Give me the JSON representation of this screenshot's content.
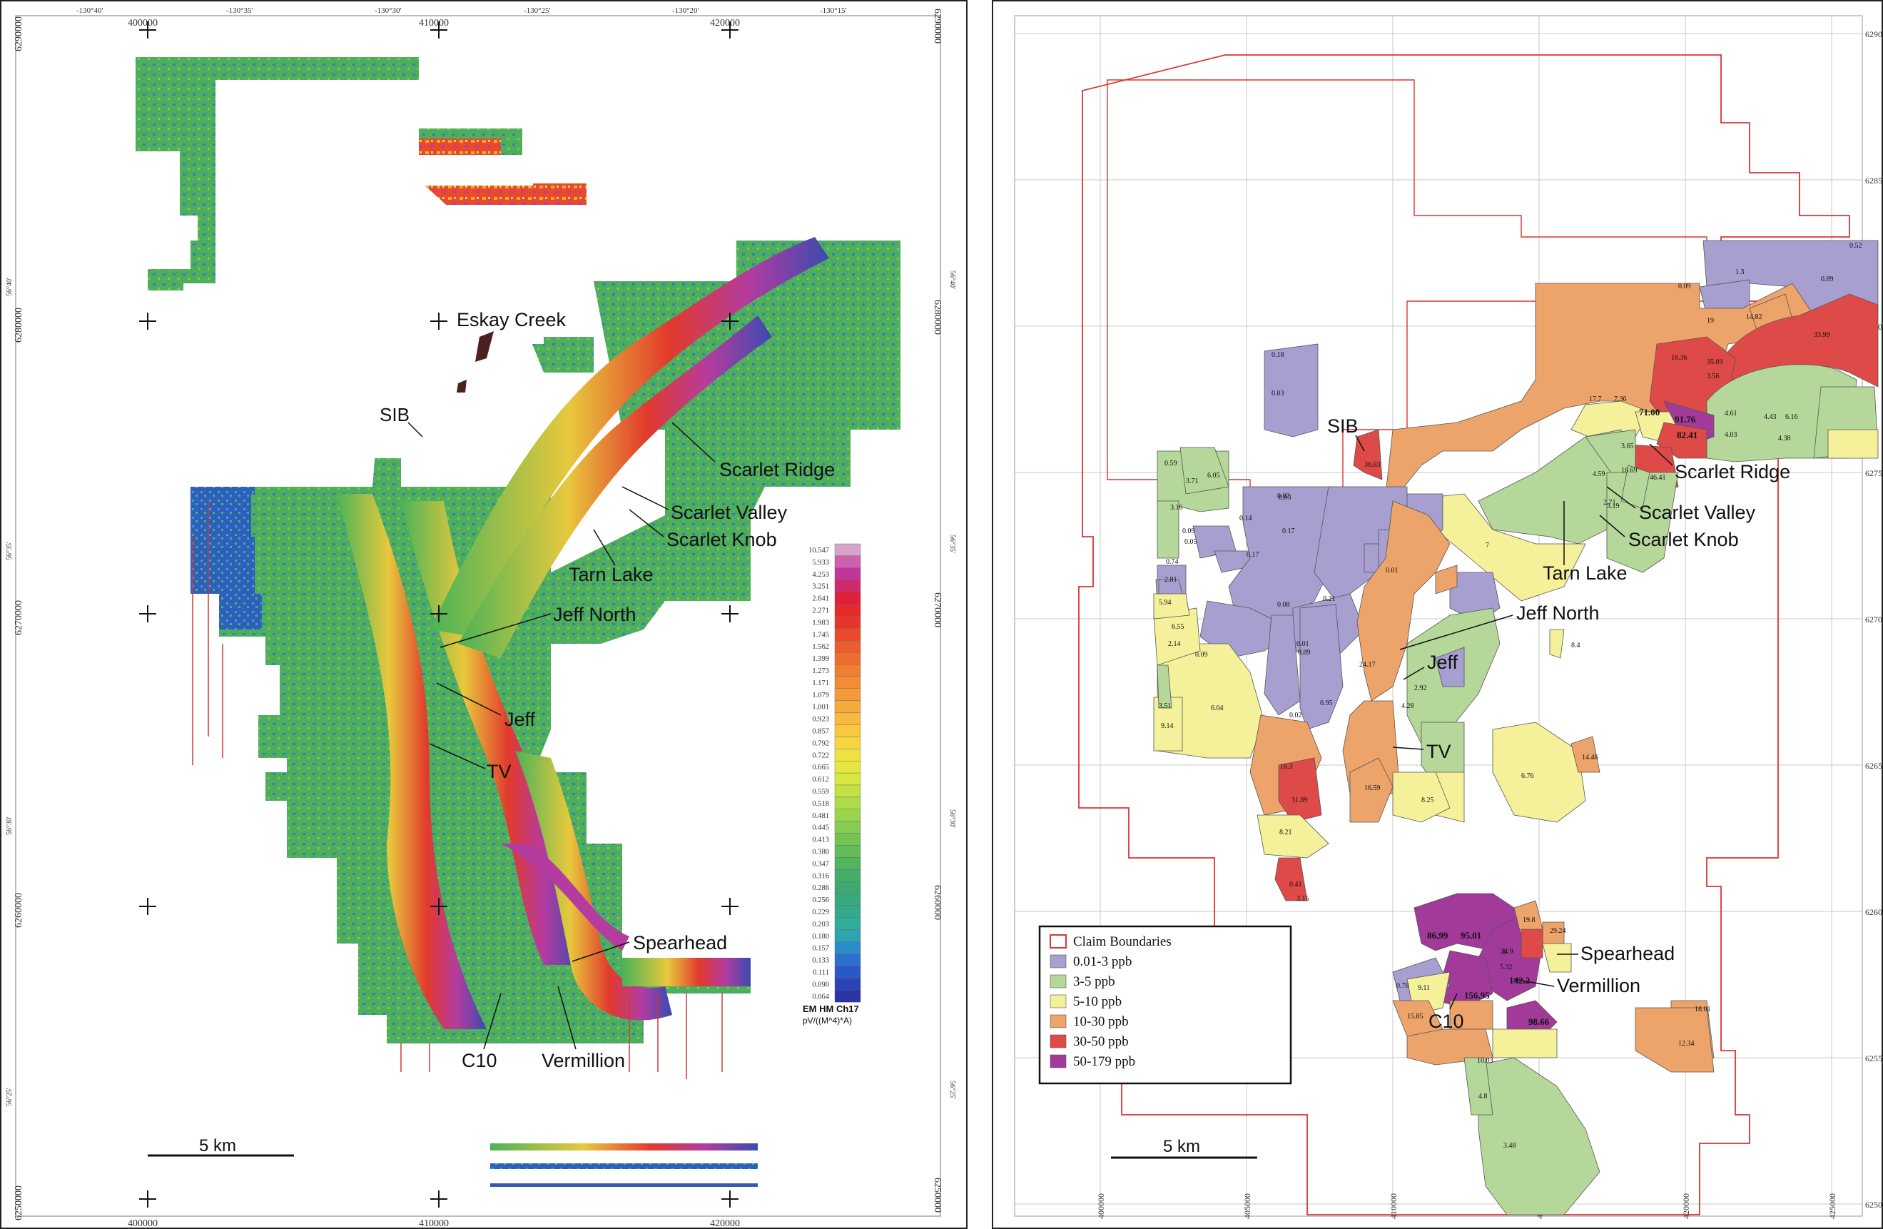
{
  "left_map": {
    "lon_ticks": [
      "-130°40'",
      "-130°35'",
      "-130°30'",
      "-130°25'",
      "-130°20'",
      "-130°15'"
    ],
    "easting_ticks": [
      "400000",
      "410000",
      "420000"
    ],
    "northing_ticks_left": [
      "6290000",
      "6280000",
      "6270000",
      "6260000",
      "6250000"
    ],
    "northing_ticks_right": [
      "6290000",
      "6280000",
      "6270000",
      "6260000",
      "6250000"
    ],
    "lat_ticks": [
      "56°40'",
      "56°35'",
      "56°30'",
      "56°25'"
    ],
    "places": {
      "eskay": "Eskay Creek",
      "sib": "SIB",
      "scarlet_ridge": "Scarlet Ridge",
      "scarlet_valley": "Scarlet Valley",
      "scarlet_knob": "Scarlet Knob",
      "tarn_lake": "Tarn Lake",
      "jeff_north": "Jeff North",
      "jeff": "Jeff",
      "tv": "TV",
      "spearhead": "Spearhead",
      "c10": "C10",
      "vermillion": "Vermillion"
    },
    "scale_label": "5 km",
    "legend": {
      "title": "EM HM Ch17",
      "units": "pV/((M^4)*A)",
      "values": [
        "10.547",
        "5.933",
        "4.253",
        "3.251",
        "2.641",
        "2.271",
        "1.983",
        "1.745",
        "1.562",
        "1.399",
        "1.273",
        "1.171",
        "1.079",
        "1.001",
        "0.923",
        "0.857",
        "0.792",
        "0.722",
        "0.665",
        "0.612",
        "0.559",
        "0.518",
        "0.481",
        "0.445",
        "0.413",
        "0.380",
        "0.347",
        "0.316",
        "0.286",
        "0.256",
        "0.229",
        "0.203",
        "0.180",
        "0.157",
        "0.133",
        "0.111",
        "0.090",
        "0.064"
      ],
      "colors": [
        "#d7a3c9",
        "#cf5fb0",
        "#c0379a",
        "#d12a6a",
        "#e0203a",
        "#e52a2a",
        "#e8342a",
        "#ea4a2c",
        "#ec5c2e",
        "#ee6e30",
        "#f07e32",
        "#f28c36",
        "#f49a3a",
        "#f6aa3c",
        "#f8ba3e",
        "#f8c83e",
        "#f6d63e",
        "#f0e040",
        "#e6e642",
        "#d6e842",
        "#c2e244",
        "#aedc48",
        "#9ad44c",
        "#86cc50",
        "#74c454",
        "#62bc58",
        "#52b45e",
        "#46ac68",
        "#3ea872",
        "#38a87e",
        "#34aa8c",
        "#30ac9a",
        "#2ea4b0",
        "#2c8cc8",
        "#2a70cc",
        "#2a58c4",
        "#2a44b6",
        "#2a34a6"
      ]
    }
  },
  "right_map": {
    "easting_ticks": [
      "400000",
      "405000",
      "410000",
      "415000",
      "420000",
      "425000"
    ],
    "northing_ticks": [
      "6290000",
      "6285000",
      "6280000",
      "6275000",
      "6270000",
      "6265000",
      "6260000",
      "6255000",
      "6250000"
    ],
    "places": {
      "sib": "SIB",
      "scarlet_ridge": "Scarlet Ridge",
      "scarlet_valley": "Scarlet Valley",
      "scarlet_knob": "Scarlet Knob",
      "tarn_lake": "Tarn Lake",
      "jeff_north": "Jeff North",
      "jeff": "Jeff",
      "tv": "TV",
      "spearhead": "Spearhead",
      "vermillion": "Vermillion",
      "c10": "C10"
    },
    "scale_label": "5 km",
    "legend": [
      {
        "label": "Claim Boundaries",
        "color": "#d33"
      },
      {
        "label": "0.01-3 ppb",
        "color": "#a79fd0"
      },
      {
        "label": "3-5 ppb",
        "color": "#b5d79a"
      },
      {
        "label": "5-10 ppb",
        "color": "#f5f09a"
      },
      {
        "label": "10-30 ppb",
        "color": "#eda46a"
      },
      {
        "label": "30-50 ppb",
        "color": "#de4a48"
      },
      {
        "label": "50-179 ppb",
        "color": "#a23a9a"
      }
    ],
    "values": [
      "0.52",
      "1.3",
      "0.89",
      "0.09",
      "19",
      "14.82",
      "33.99",
      "16.36",
      "35.03",
      "0.18",
      "0.03",
      "17.7",
      "7.36",
      "71.00",
      "91.76",
      "3.56",
      "4.61",
      "4.03",
      "4.43",
      "6.16",
      "4.38",
      "82.41",
      "18.69",
      "46.41",
      "36.83",
      "0.59",
      "3.71",
      "6.05",
      "3.16",
      "0.14",
      "0.02",
      "0.17",
      "0.03",
      "4.59",
      "3.65",
      "2.71",
      "3.19",
      "0.09",
      "0.05",
      "0.17",
      "7",
      "0.74",
      "2.81",
      "0.21",
      "0.01",
      "0.08",
      "0.01",
      "5.94",
      "6.55",
      "2.14",
      "0.09",
      "0.89",
      "24.17",
      "2.92",
      "8.4",
      "3.51",
      "9.14",
      "6.04",
      "0.95",
      "0.02",
      "4.28",
      "18.3",
      "31.89",
      "8.25",
      "6.76",
      "14.46",
      "8.21",
      "0.41",
      "3.15",
      "86.99",
      "95.01",
      "19.8",
      "29.24",
      "34.9",
      "5.32",
      "8",
      "142.2",
      "156.95",
      "98.66",
      "0.78",
      "9.11",
      "15.85",
      "10.03",
      "18.01",
      "12.34",
      "4.8",
      "3.48",
      "16.59"
    ]
  }
}
